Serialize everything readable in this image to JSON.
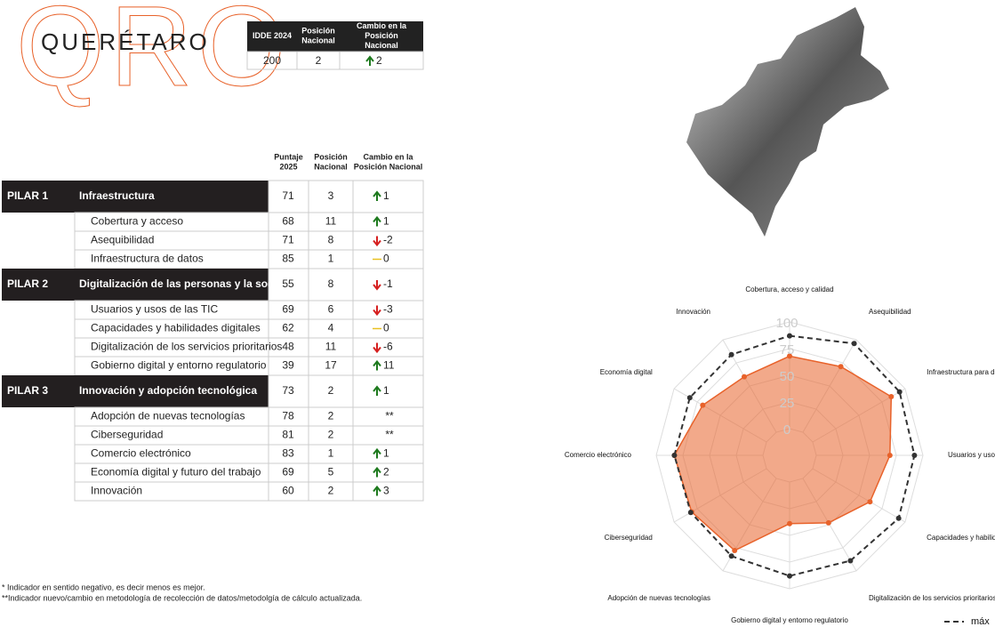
{
  "header": {
    "logo": "QRO",
    "title": "QUERÉTARO"
  },
  "summary": {
    "headers": [
      "IDDE 2024",
      "Posición Nacional",
      "Cambio en la Posición Nacional"
    ],
    "row": [
      200,
      2,
      2
    ]
  },
  "table": {
    "headers": [
      "Puntaje 2025",
      "Posición Nacional",
      "Cambio en la Posición Nacional"
    ],
    "pillars": [
      {
        "label": "PILAR 1",
        "name": "Infraestructura",
        "score": 71,
        "position": 3,
        "change": 1,
        "items": [
          {
            "name": "Cobertura y acceso",
            "score": 68,
            "position": 11,
            "change": 1
          },
          {
            "name": "Asequibilidad",
            "score": 71,
            "position": 8,
            "change": -2
          },
          {
            "name": "Infraestructura de datos",
            "score": 85,
            "position": 1,
            "change": 0
          }
        ]
      },
      {
        "label": "PILAR 2",
        "name": "Digitalización de las personas y la sociedad",
        "score": 55,
        "position": 8,
        "change": -1,
        "items": [
          {
            "name": "Usuarios y usos de las TIC",
            "score": 69,
            "position": 6,
            "change": -3
          },
          {
            "name": "Capacidades y habilidades digitales",
            "score": 62,
            "position": 4,
            "change": 0
          },
          {
            "name": "Digitalización de los servicios prioritarios",
            "score": 48,
            "position": 11,
            "change": -6
          },
          {
            "name": "Gobierno digital y entorno regulatorio",
            "score": 39,
            "position": 17,
            "change": 11
          }
        ]
      },
      {
        "label": "PILAR 3",
        "name": "Innovación y adopción tecnológica",
        "score": 73,
        "position": 2,
        "change": 1,
        "items": [
          {
            "name": "Adopción de nuevas tecnologías",
            "score": 78,
            "position": 2,
            "change": "**"
          },
          {
            "name": "Ciberseguridad",
            "score": 81,
            "position": 2,
            "change": "**"
          },
          {
            "name": "Comercio electrónico",
            "score": 83,
            "position": 1,
            "change": 1
          },
          {
            "name": "Economía digital y futuro del trabajo",
            "score": 69,
            "position": 5,
            "change": 2
          },
          {
            "name": "Innovación",
            "score": 60,
            "position": 2,
            "change": 3
          }
        ]
      }
    ]
  },
  "footnotes": [
    "* Indicador en sentido negativo, es decir menos es mejor.",
    "**Indicador nuevo/cambio en metodología de recolección de datos/metodolgía de cálculo actualizada."
  ],
  "chart_data": {
    "type": "radar",
    "categories": [
      "Cobertura, acceso y calidad",
      "Asequibilidad",
      "Infraestructura para datos",
      "Usuarios y usos TICs",
      "Capacidades y habilidades",
      "Digitalización de los servicios prioritarios",
      "Gobierno digital y entorno regulatorio",
      "Adopción de nuevas tecnologías",
      "Ciberseguridad",
      "Comercio electrónico",
      "Economía digital",
      "Innovación"
    ],
    "series": [
      {
        "color": "#e8622a",
        "values": [
          68,
          71,
          85,
          69,
          62,
          48,
          39,
          78,
          81,
          83,
          69,
          60
        ]
      },
      {
        "name": "máx",
        "color": "#333333",
        "values": [
          87,
          96,
          94,
          92,
          93,
          89,
          88,
          84,
          82,
          83,
          83,
          84
        ]
      }
    ],
    "ylim": [
      0,
      100
    ],
    "yticks": [
      0,
      25,
      50,
      75,
      100
    ],
    "grid": true,
    "legend": "bottom-right"
  }
}
